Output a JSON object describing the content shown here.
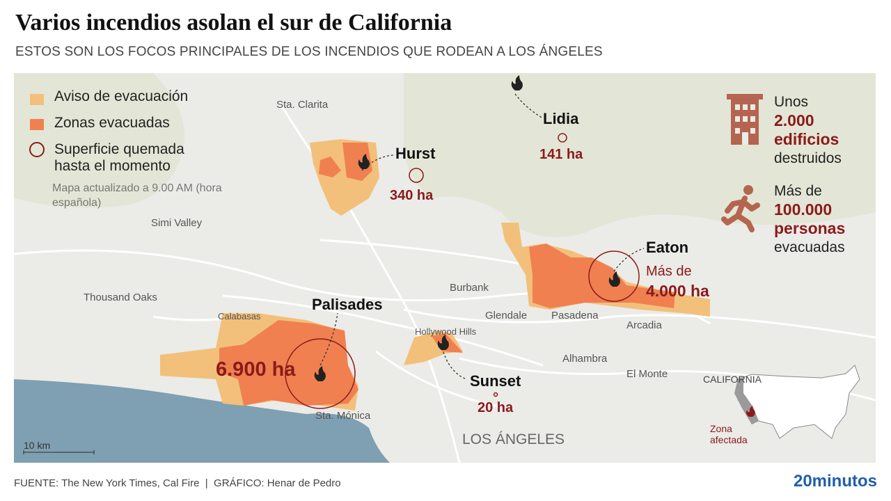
{
  "header": {
    "title": "Varios incendios asolan el sur de California",
    "subtitle": "ESTOS SON LOS FOCOS PRINCIPALES DE LOS INCENDIOS QUE RODEAN A LOS ÁNGELES"
  },
  "legend": {
    "items": [
      "Aviso de evacuación",
      "Zonas evacuadas",
      "Superficie quemada hasta el momento"
    ],
    "note": "Mapa actualizado a 9.00 AM (hora española)"
  },
  "places": [
    "Sta. Clarita",
    "Simi Valley",
    "Thousand Oaks",
    "Calabasas",
    "Burbank",
    "Glendale",
    "Pasadena",
    "Arcadia",
    "Hollywood Hills",
    "Alhambra",
    "El Monte",
    "Sta. Mónica",
    "LOS ÁNGELES"
  ],
  "fires": [
    {
      "name": "Hurst",
      "area": "340 ha"
    },
    {
      "name": "Lidia",
      "area": "141 ha"
    },
    {
      "name": "Eaton",
      "area_prefix": "Más de",
      "area": "4.000 ha"
    },
    {
      "name": "Palisades",
      "area": "6.900 ha"
    },
    {
      "name": "Sunset",
      "area": "20 ha"
    }
  ],
  "stats": [
    {
      "pre": "Unos",
      "highlight": "2.000 edificios",
      "post": "destruidos"
    },
    {
      "pre": "Más de",
      "highlight": "100.000 personas",
      "post": "evacuadas"
    }
  ],
  "scale": "10 km",
  "inset": {
    "label": "CALIFORNIA",
    "note": "Zona afectada"
  },
  "footer": {
    "source": "FUENTE: The New York Times, Cal Fire  |  GRÁFICO: Henar de Pedro",
    "brand": "20minutos"
  }
}
